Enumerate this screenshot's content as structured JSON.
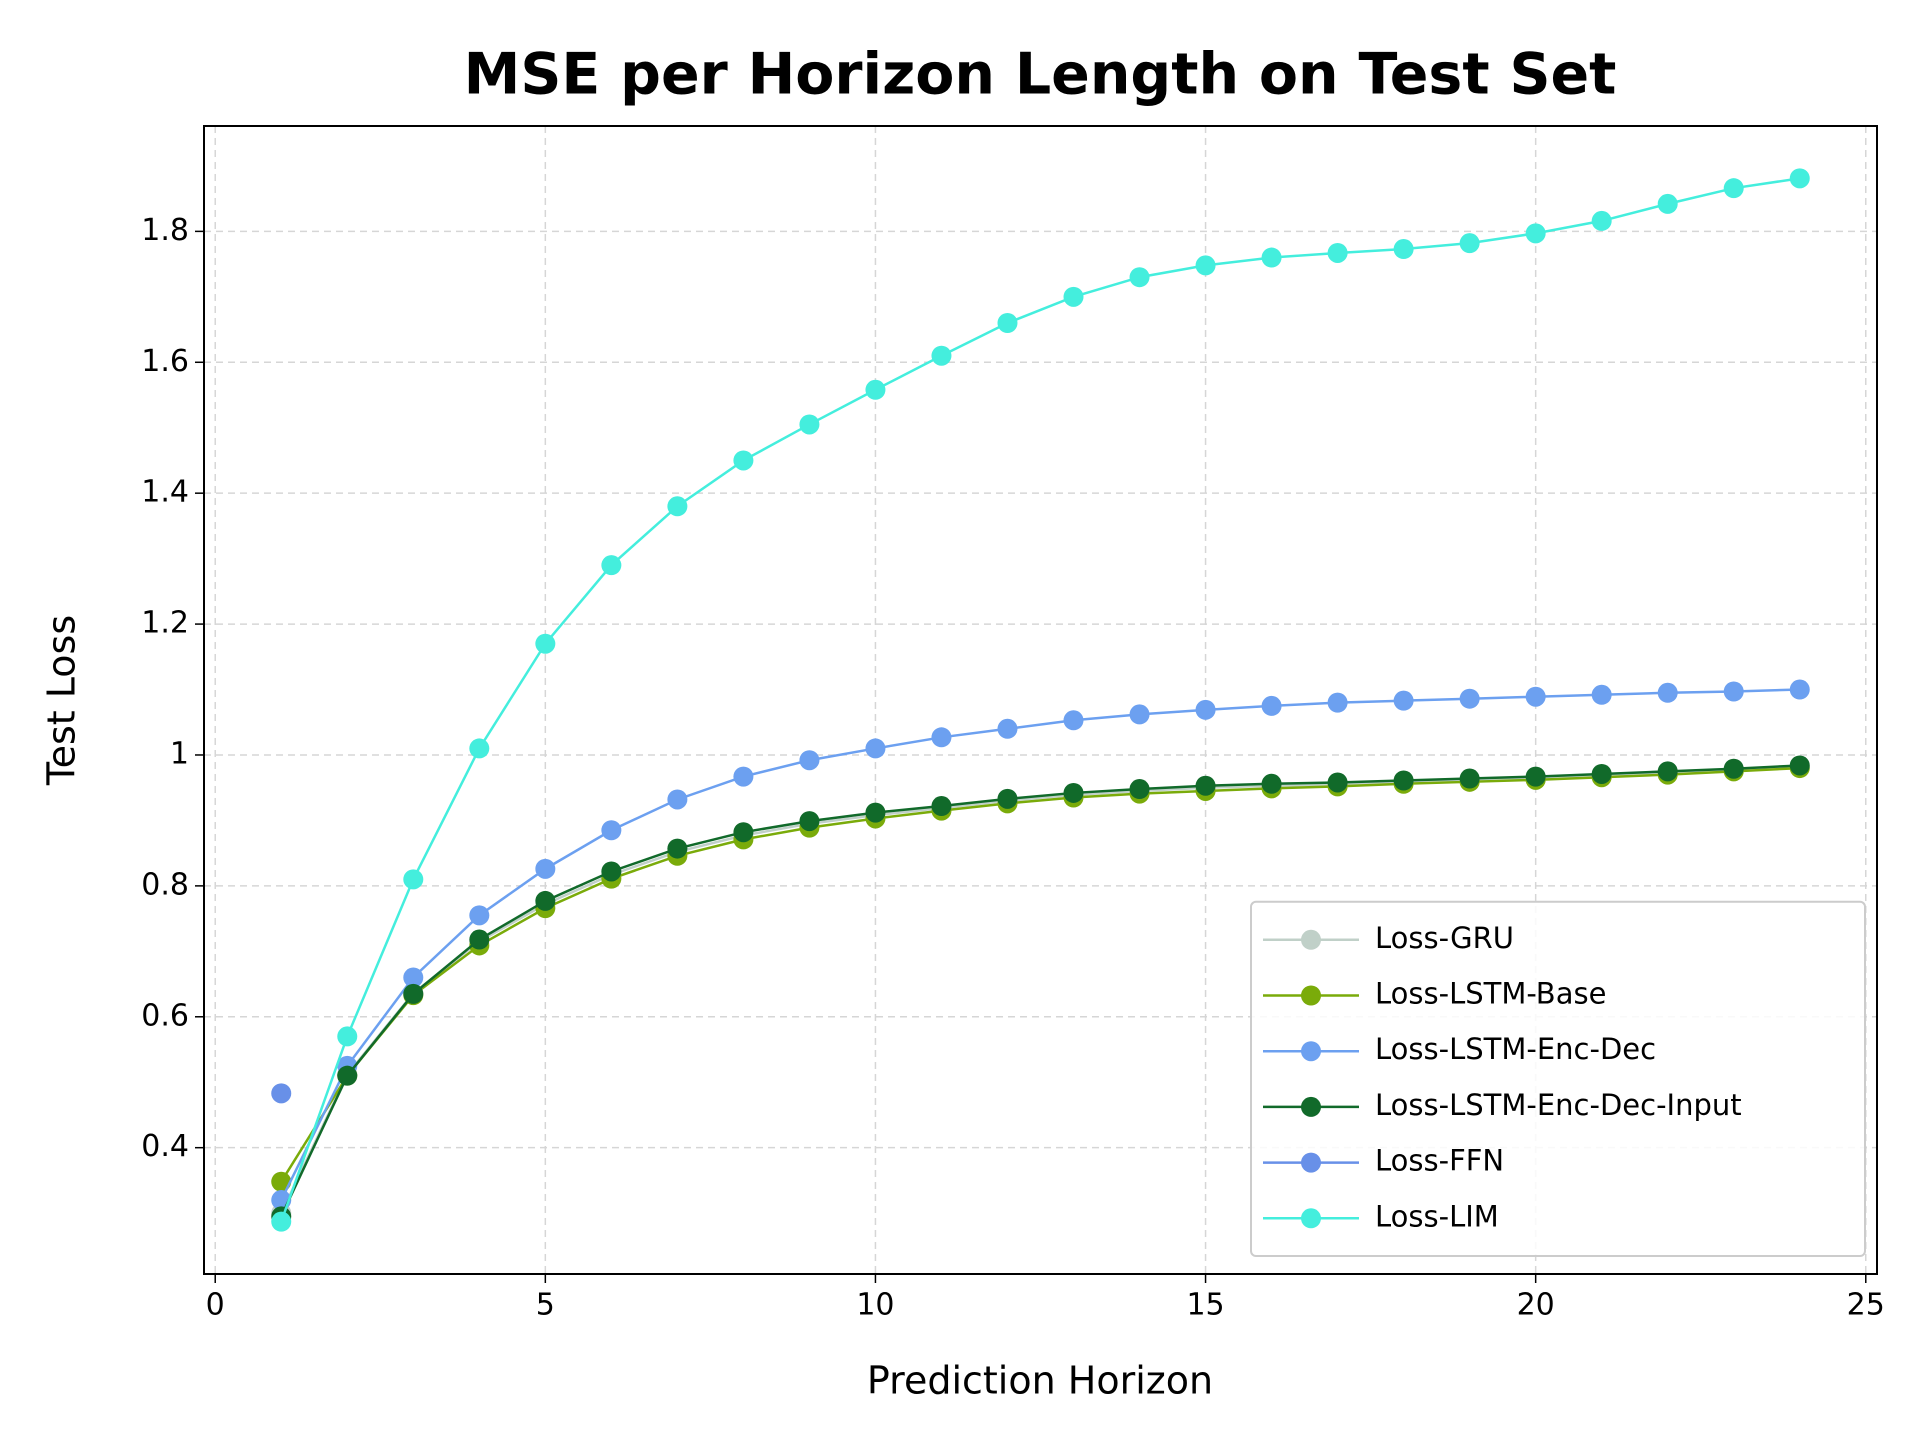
{
  "chart_data": {
    "type": "line",
    "title": "MSE per Horizon Length on Test Set",
    "xlabel": "Prediction Horizon",
    "ylabel": "Test Loss",
    "x": [
      1,
      2,
      3,
      4,
      5,
      6,
      7,
      8,
      9,
      10,
      11,
      12,
      13,
      14,
      15,
      16,
      17,
      18,
      19,
      20,
      21,
      22,
      23,
      24
    ],
    "series": [
      {
        "name": "Loss-GRU",
        "color": "#c0d0c8",
        "values": [
          0.3,
          0.512,
          0.636,
          0.715,
          0.772,
          0.817,
          0.852,
          0.877,
          0.895,
          0.908,
          0.919,
          0.93,
          0.939,
          0.945,
          0.95,
          0.953,
          0.955,
          0.958,
          0.961,
          0.964,
          0.968,
          0.972,
          0.977,
          0.982
        ]
      },
      {
        "name": "Loss-LSTM-Base",
        "color": "#7aab0a",
        "values": [
          0.348,
          0.51,
          0.633,
          0.709,
          0.766,
          0.811,
          0.846,
          0.871,
          0.889,
          0.903,
          0.915,
          0.926,
          0.935,
          0.941,
          0.945,
          0.949,
          0.952,
          0.956,
          0.959,
          0.962,
          0.966,
          0.97,
          0.975,
          0.98
        ]
      },
      {
        "name": "Loss-LSTM-Enc-Dec",
        "color": "#6ca0f0",
        "values": [
          0.32,
          0.525,
          0.66,
          0.755,
          0.826,
          0.885,
          0.932,
          0.967,
          0.992,
          1.01,
          1.027,
          1.04,
          1.053,
          1.062,
          1.069,
          1.075,
          1.08,
          1.083,
          1.086,
          1.089,
          1.092,
          1.095,
          1.097,
          1.1
        ]
      },
      {
        "name": "Loss-LSTM-Enc-Dec-Input",
        "color": "#116a2a",
        "values": [
          0.295,
          0.51,
          0.635,
          0.718,
          0.777,
          0.822,
          0.857,
          0.882,
          0.899,
          0.912,
          0.922,
          0.933,
          0.942,
          0.948,
          0.953,
          0.956,
          0.958,
          0.961,
          0.964,
          0.967,
          0.971,
          0.975,
          0.979,
          0.984
        ]
      },
      {
        "name": "Loss-FFN",
        "color": "#6890e8",
        "values": [
          0.483,
          null,
          null,
          null,
          null,
          null,
          null,
          null,
          null,
          null,
          null,
          null,
          null,
          null,
          null,
          null,
          null,
          null,
          null,
          null,
          null,
          null,
          null,
          null
        ]
      },
      {
        "name": "Loss-LIM",
        "color": "#44eedd",
        "values": [
          0.287,
          0.57,
          0.81,
          1.01,
          1.17,
          1.29,
          1.38,
          1.45,
          1.505,
          1.558,
          1.61,
          1.66,
          1.7,
          1.73,
          1.748,
          1.76,
          1.767,
          1.773,
          1.782,
          1.797,
          1.816,
          1.842,
          1.866,
          1.881
        ]
      }
    ],
    "xlim": [
      -0.17,
      25.17
    ],
    "ylim": [
      0.207,
      1.961
    ],
    "xticks": [
      0,
      5,
      10,
      15,
      20,
      25
    ],
    "yticks": [
      0.4,
      0.6,
      0.8,
      1.0,
      1.2,
      1.4,
      1.6,
      1.8
    ],
    "grid": true,
    "legend": "lower right"
  }
}
